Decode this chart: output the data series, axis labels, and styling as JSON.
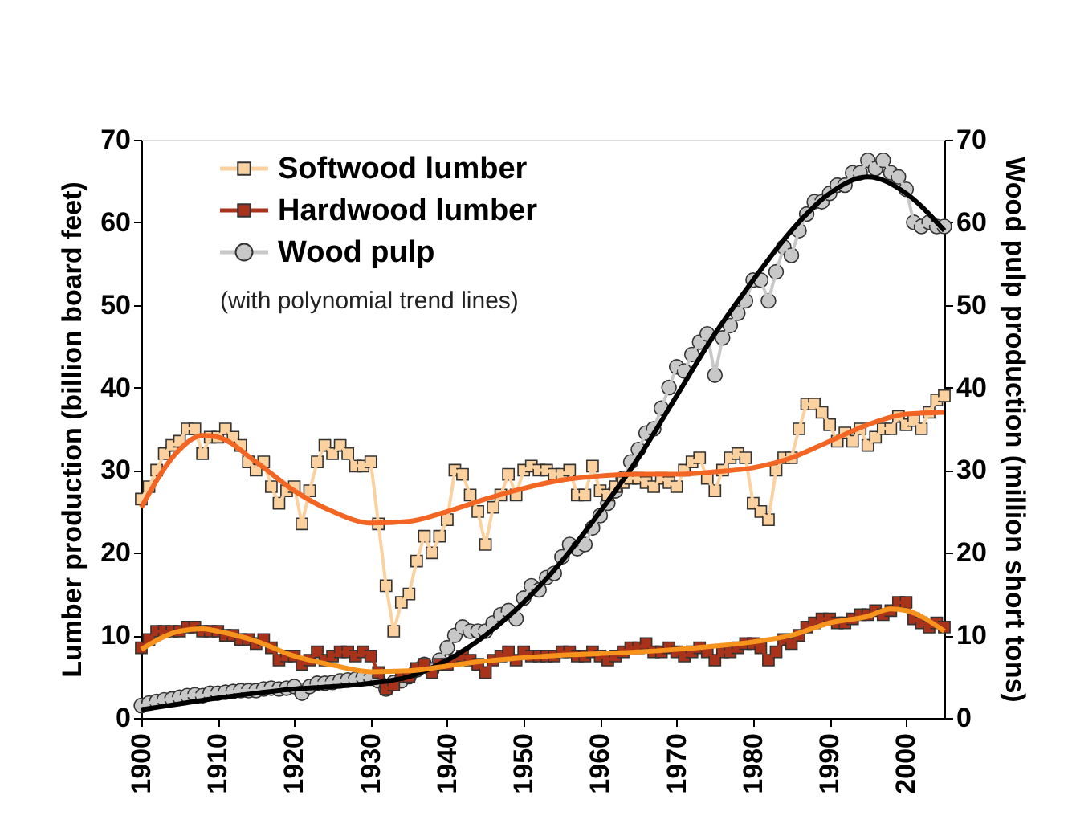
{
  "chart_data": {
    "type": "line",
    "xlabel": null,
    "ylabel": "Lumber production (billion board feet)",
    "y2label": "Wood pulp production (million short tons)",
    "xlim": [
      1900,
      2005
    ],
    "xticks": [
      1900,
      1910,
      1920,
      1930,
      1940,
      1950,
      1960,
      1970,
      1980,
      1990,
      2000
    ],
    "ylim": [
      0,
      70
    ],
    "yticks": [
      0,
      10,
      20,
      30,
      40,
      50,
      60,
      70
    ],
    "y2lim": [
      0,
      70
    ],
    "y2ticks": [
      0,
      10,
      20,
      30,
      40,
      50,
      60,
      70
    ],
    "grid": false,
    "legend": "top left",
    "line_style": "solid",
    "annotations": [
      "(with polynomial trend lines)"
    ],
    "x": [
      1900,
      1901,
      1902,
      1903,
      1904,
      1905,
      1906,
      1907,
      1908,
      1909,
      1910,
      1911,
      1912,
      1913,
      1914,
      1915,
      1916,
      1917,
      1918,
      1919,
      1920,
      1921,
      1922,
      1923,
      1924,
      1925,
      1926,
      1927,
      1928,
      1929,
      1930,
      1931,
      1932,
      1933,
      1934,
      1935,
      1936,
      1937,
      1938,
      1939,
      1940,
      1941,
      1942,
      1943,
      1944,
      1945,
      1946,
      1947,
      1948,
      1949,
      1950,
      1951,
      1952,
      1953,
      1954,
      1955,
      1956,
      1957,
      1958,
      1959,
      1960,
      1961,
      1962,
      1963,
      1964,
      1965,
      1966,
      1967,
      1968,
      1969,
      1970,
      1971,
      1972,
      1973,
      1974,
      1975,
      1976,
      1977,
      1978,
      1979,
      1980,
      1981,
      1982,
      1983,
      1984,
      1985,
      1986,
      1987,
      1988,
      1989,
      1990,
      1991,
      1992,
      1993,
      1994,
      1995,
      1996,
      1997,
      1998,
      1999,
      2000,
      2001,
      2002,
      2003,
      2004,
      2005
    ],
    "series": [
      {
        "name": "Softwood lumber",
        "color": "#fcd1a0",
        "marker": "square",
        "values": [
          26.5,
          28,
          30,
          32,
          33,
          33.5,
          35,
          35,
          32,
          34,
          34,
          35,
          34,
          33,
          31,
          30,
          31,
          28,
          26,
          27.5,
          28,
          23.5,
          27.5,
          31,
          33,
          32,
          33,
          32,
          30.5,
          30.5,
          31,
          23.5,
          16,
          10.5,
          14,
          15,
          19,
          22,
          20,
          22,
          24,
          30,
          29.5,
          27,
          25,
          21,
          25.5,
          27,
          29.5,
          27,
          30,
          30.5,
          30,
          30,
          29.5,
          29.5,
          30,
          27,
          27,
          30.5,
          27.5,
          27,
          28,
          28.5,
          29,
          29,
          28.5,
          28,
          29,
          28.5,
          28,
          30,
          31,
          31.5,
          29,
          27.5,
          30,
          31.5,
          32,
          31.5,
          26,
          25,
          24,
          30,
          31.5,
          31.5,
          35,
          38,
          38,
          37,
          35.5,
          33.5,
          34.5,
          33.5,
          35,
          33,
          34,
          35,
          35,
          36.5,
          35.5,
          36,
          35,
          37,
          38.5,
          39
        ]
      },
      {
        "name": "Hardwood lumber",
        "color": "#a8321a",
        "marker": "square",
        "values": [
          8.5,
          9.5,
          10.5,
          10.5,
          10.5,
          10.5,
          11,
          11,
          10.5,
          10.5,
          10.5,
          10,
          10,
          9.5,
          9.5,
          9,
          9.5,
          8.5,
          7,
          7.5,
          7.5,
          6.5,
          7,
          8,
          7,
          7.5,
          8,
          8,
          7.5,
          8,
          7.5,
          5.5,
          3.5,
          4,
          5,
          5,
          6,
          6.5,
          5.5,
          6.5,
          6.5,
          7,
          7.5,
          7,
          6.5,
          5.5,
          7,
          7.5,
          8,
          7,
          8,
          7.5,
          7.5,
          7.5,
          7.5,
          8,
          8,
          7.5,
          7.5,
          8,
          7.5,
          7,
          7.5,
          8,
          8.5,
          8.5,
          9,
          8,
          8,
          8.5,
          8,
          7.5,
          8,
          8.5,
          8,
          7,
          8,
          8,
          8.5,
          9,
          9,
          8.5,
          7,
          8,
          9.5,
          9,
          10,
          11,
          11.5,
          12,
          12,
          11.5,
          11.5,
          12,
          12.5,
          12.5,
          13,
          12.5,
          13,
          14,
          14,
          12,
          11.5,
          11,
          11.5,
          11
        ]
      },
      {
        "name": "Wood pulp",
        "color": "#c8c8c8",
        "marker": "circle",
        "axis": "y2",
        "values": [
          1.5,
          1.8,
          2,
          2.2,
          2.3,
          2.5,
          2.7,
          2.8,
          2.7,
          3,
          3,
          3.1,
          3.2,
          3.3,
          3.3,
          3.3,
          3.5,
          3.6,
          3.5,
          3.6,
          3.8,
          3,
          3.8,
          4.2,
          4.2,
          4.3,
          4.5,
          4.6,
          4.7,
          4.9,
          4.8,
          4.5,
          3.5,
          4.3,
          4.5,
          5,
          5.8,
          6.5,
          5.8,
          7,
          8.5,
          10,
          11,
          10.5,
          10.5,
          10.5,
          11.5,
          12.5,
          13,
          12,
          14.5,
          16,
          15.5,
          17,
          17.5,
          19.5,
          21,
          20.5,
          21,
          23,
          24.5,
          26,
          27.5,
          29,
          31,
          32.5,
          34.5,
          35,
          37.5,
          40,
          42.5,
          42,
          44,
          45.5,
          46.5,
          41.5,
          46,
          47.5,
          49,
          50.5,
          53,
          53,
          50.5,
          54,
          57,
          56,
          59,
          61,
          62.5,
          62.5,
          63.5,
          64.5,
          64.5,
          66,
          66,
          67.5,
          66.5,
          67.5,
          66,
          65.5,
          64,
          60,
          59.5,
          60,
          59.5,
          59.5
        ]
      },
      {
        "type": "line",
        "color": "#f26522",
        "marker": "none",
        "x": [
          1900,
          1905,
          1908,
          1910,
          1915,
          1920,
          1925,
          1930,
          1935,
          1940,
          1945,
          1950,
          1955,
          1960,
          1965,
          1970,
          1975,
          1980,
          1985,
          1990,
          1995,
          2000,
          2005
        ],
        "values": [
          25.5,
          32.5,
          34.2,
          34,
          31,
          27.5,
          25,
          23.6,
          23.8,
          25,
          26.5,
          27.8,
          28.8,
          29.3,
          29.5,
          29.5,
          29.8,
          30.3,
          31.5,
          33.5,
          35.5,
          36.8,
          37
        ]
      },
      {
        "type": "line",
        "color": "#f7941d",
        "marker": "none",
        "x": [
          1900,
          1905,
          1908,
          1910,
          1915,
          1920,
          1925,
          1930,
          1935,
          1940,
          1945,
          1950,
          1955,
          1960,
          1965,
          1970,
          1975,
          1980,
          1985,
          1990,
          1995,
          1998,
          2000,
          2005
        ],
        "values": [
          8.3,
          10.5,
          10.8,
          10.5,
          9.3,
          7.5,
          6.4,
          5.6,
          5.7,
          6.3,
          6.9,
          7.3,
          7.6,
          7.8,
          8,
          8.3,
          8.7,
          9.2,
          10,
          11.5,
          12.3,
          13.2,
          13,
          10.5
        ]
      },
      {
        "type": "line",
        "color": "#000000",
        "marker": "none",
        "axis": "y2",
        "x": [
          1900,
          1905,
          1910,
          1915,
          1920,
          1925,
          1930,
          1935,
          1940,
          1945,
          1950,
          1955,
          1960,
          1965,
          1970,
          1975,
          1980,
          1985,
          1990,
          1995,
          2000,
          2005
        ],
        "values": [
          1,
          1.7,
          2.4,
          3,
          3.5,
          3.8,
          4.2,
          5,
          7,
          10,
          14,
          19,
          25,
          31.5,
          39,
          46.5,
          53,
          59,
          63.5,
          65.5,
          63.5,
          59
        ]
      }
    ]
  }
}
